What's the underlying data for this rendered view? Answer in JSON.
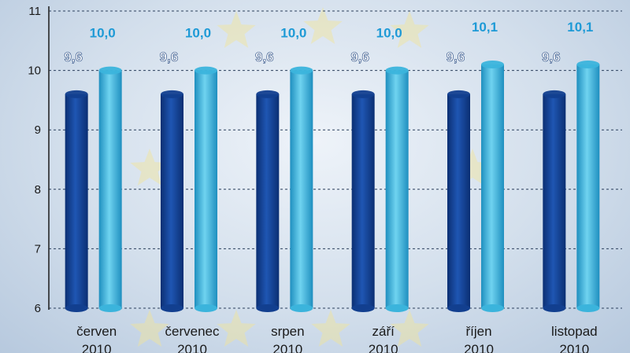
{
  "chart_data": {
    "type": "bar",
    "categories": [
      [
        "červen",
        "2010"
      ],
      [
        "červenec",
        "2010"
      ],
      [
        "srpen",
        "2010"
      ],
      [
        "září",
        "2010"
      ],
      [
        "říjen",
        "2010"
      ],
      [
        "listopad",
        "2010"
      ]
    ],
    "series": [
      {
        "values": [
          9.6,
          9.6,
          9.6,
          9.6,
          9.6,
          9.6
        ],
        "value_labels": [
          "9,6",
          "9,6",
          "9,6",
          "9,6",
          "9,6",
          "9,6"
        ],
        "color": "#123f8f",
        "label_color": "#ffffff"
      },
      {
        "values": [
          10.0,
          10.0,
          10.0,
          10.0,
          10.1,
          10.1
        ],
        "value_labels": [
          "10,0",
          "10,0",
          "10,0",
          "10,0",
          "10,1",
          "10,1"
        ],
        "color": "#3bb4dc",
        "label_color": "#1e9ad6"
      }
    ],
    "ylim": [
      6,
      11
    ],
    "yticks": [
      "6",
      "7",
      "8",
      "9",
      "10",
      "11"
    ],
    "grid": true
  }
}
